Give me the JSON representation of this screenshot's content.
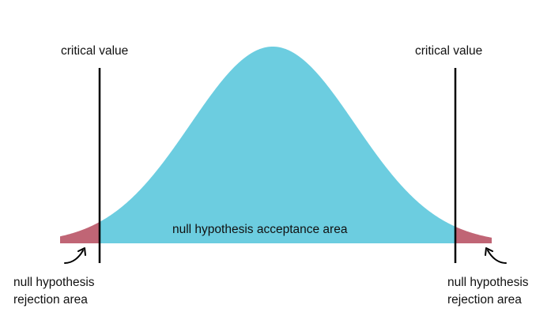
{
  "labels": {
    "critical_value_left": "critical value",
    "critical_value_right": "critical value",
    "acceptance_area": "null hypothesis acceptance area",
    "rejection_left": {
      "line1": "null hypothesis",
      "line2": "rejection area"
    },
    "rejection_right": {
      "line1": "null hypothesis",
      "line2": "rejection area"
    }
  },
  "colors": {
    "acceptance_fill": "#6ccde0",
    "rejection_fill": "#c06575",
    "line": "#000000",
    "text": "#111111",
    "background": "#ffffff"
  },
  "icons": {
    "left_pointer": "curved-arrow-icon",
    "right_pointer": "curved-arrow-icon"
  }
}
